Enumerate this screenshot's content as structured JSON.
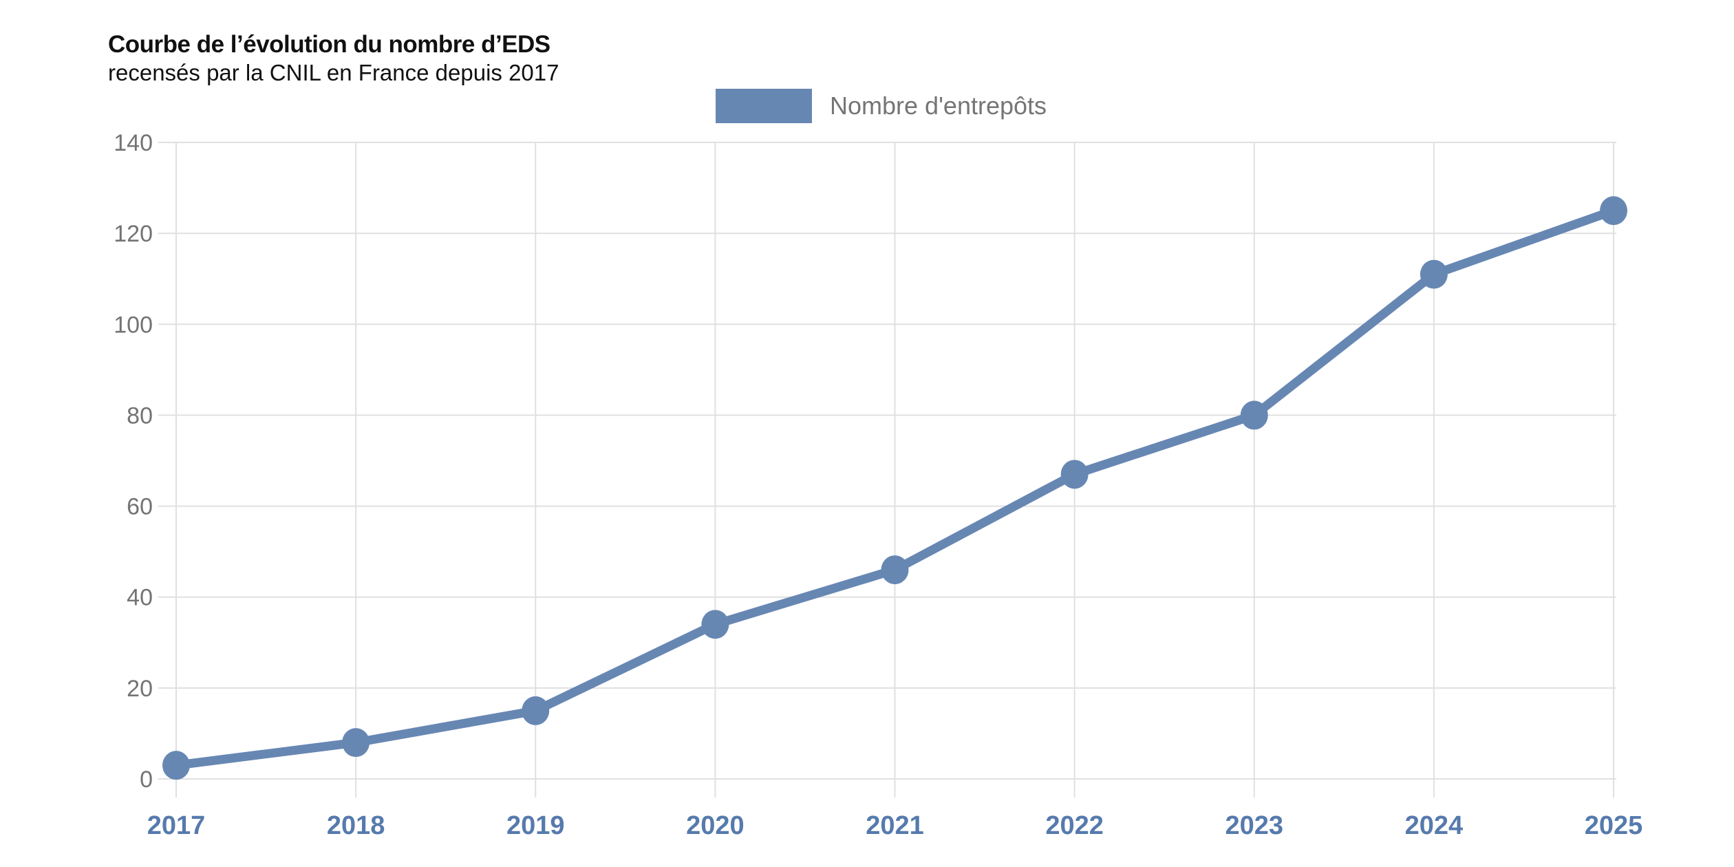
{
  "title": {
    "line1": "Courbe de l’évolution du nombre d’EDS",
    "line2": "recensés par la CNIL en France depuis 2017"
  },
  "legend": {
    "label": "Nombre d'entrepôts"
  },
  "chart_data": {
    "type": "line",
    "title": "Courbe de l’évolution du nombre d’EDS recensés par la CNIL en France depuis 2017",
    "categories": [
      "2017",
      "2018",
      "2019",
      "2020",
      "2021",
      "2022",
      "2023",
      "2024",
      "2025"
    ],
    "series": [
      {
        "name": "Nombre d'entrepôts",
        "values": [
          3,
          8,
          15,
          34,
          46,
          67,
          80,
          111,
          125
        ]
      }
    ],
    "xlabel": "",
    "ylabel": "",
    "ylim": [
      0,
      140
    ],
    "ytick_step": 20,
    "yticks": [
      0,
      20,
      40,
      60,
      80,
      100,
      120,
      140
    ],
    "grid": true,
    "legend_position": "top-center",
    "marker": "circle"
  },
  "colors": {
    "series": "#6787b3",
    "x_tick_label": "#567aad",
    "y_tick_label": "#737373",
    "grid": "#e0e0e0",
    "legend_text": "#757575",
    "title": "#111111",
    "background": "#ffffff"
  }
}
